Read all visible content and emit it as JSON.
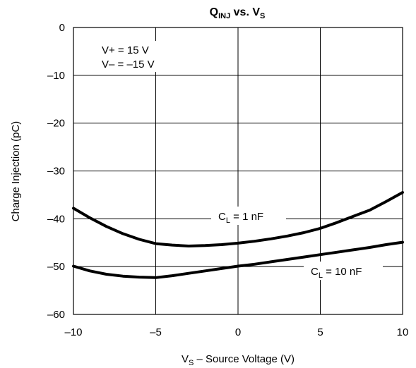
{
  "chart_data": {
    "type": "line",
    "title": {
      "main": "Q",
      "sub": "INJ",
      "mid": " vs. V",
      "sub2": "S"
    },
    "xlabel": {
      "pre": "V",
      "sub": "S",
      "post": " – Source Voltage (V)"
    },
    "ylabel": "Charge Injection (pC)",
    "xlim": [
      -10,
      10
    ],
    "ylim": [
      -60,
      0
    ],
    "x_ticks": [
      -10,
      -5,
      0,
      5,
      10
    ],
    "y_ticks": [
      0,
      -10,
      -20,
      -30,
      -40,
      -50,
      -60
    ],
    "x_tick_labels": [
      "–10",
      "–5",
      "0",
      "5",
      "10"
    ],
    "y_tick_labels": [
      "0",
      "–10",
      "–20",
      "–30",
      "–40",
      "–50",
      "–60"
    ],
    "grid": true,
    "annotation": {
      "line1": "V+ = 15 V",
      "line2": "V– = –15 V"
    },
    "series": [
      {
        "label": {
          "pre": "C",
          "sub": "L",
          "post": " = 1 nF"
        },
        "x": [
          -10,
          -9,
          -8,
          -7,
          -6,
          -5,
          -4,
          -3,
          -2,
          -1,
          0,
          1,
          2,
          3,
          4,
          5,
          6,
          7,
          8,
          9,
          10
        ],
        "y": [
          -37.8,
          -39.8,
          -41.6,
          -43.1,
          -44.3,
          -45.2,
          -45.5,
          -45.7,
          -45.6,
          -45.4,
          -45.1,
          -44.7,
          -44.2,
          -43.6,
          -42.9,
          -42.0,
          -40.8,
          -39.5,
          -38.2,
          -36.4,
          -34.5
        ]
      },
      {
        "label": {
          "pre": "C",
          "sub": "L",
          "post": " = 10 nF"
        },
        "x": [
          -10,
          -9,
          -8,
          -7,
          -6,
          -5,
          -4,
          -3,
          -2,
          -1,
          0,
          1,
          2,
          3,
          4,
          5,
          6,
          7,
          8,
          9,
          10
        ],
        "y": [
          -49.9,
          -50.9,
          -51.6,
          -52.0,
          -52.2,
          -52.3,
          -51.9,
          -51.4,
          -50.9,
          -50.4,
          -49.9,
          -49.5,
          -49.0,
          -48.5,
          -48.0,
          -47.5,
          -47.0,
          -46.5,
          -46.0,
          -45.4,
          -44.9
        ]
      }
    ]
  }
}
